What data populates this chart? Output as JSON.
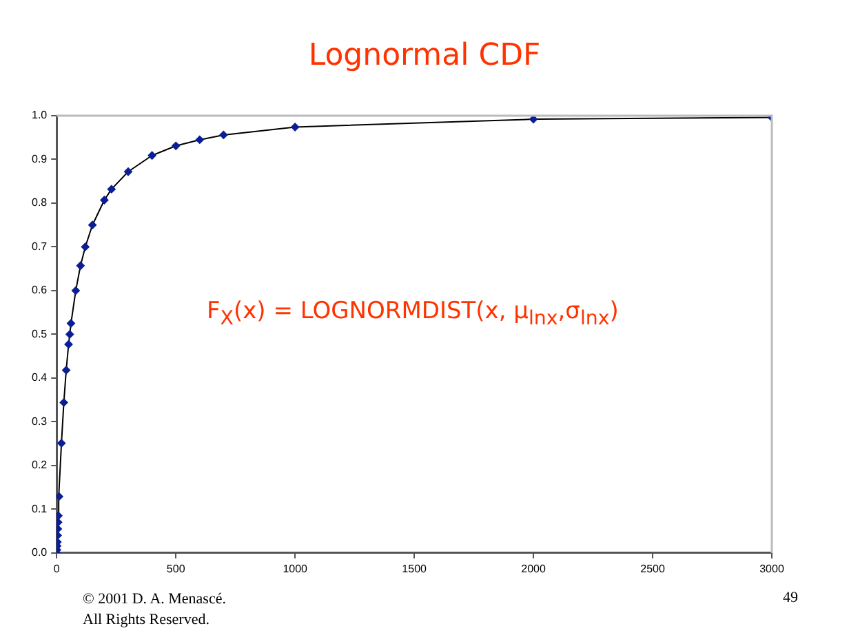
{
  "chart_data": {
    "type": "line",
    "title": "Lognormal CDF",
    "x": [
      0,
      1,
      2,
      3,
      4,
      5,
      6,
      7,
      10,
      20,
      30,
      40,
      50,
      55,
      60,
      80,
      100,
      120,
      150,
      200,
      230,
      300,
      400,
      500,
      600,
      700,
      1000,
      2000,
      3000
    ],
    "series": [
      {
        "color": "#0a1e96",
        "values": [
          0,
          0.007,
          0.016,
          0.025,
          0.04,
          0.055,
          0.07,
          0.085,
          0.129,
          0.251,
          0.344,
          0.418,
          0.477,
          0.5,
          0.525,
          0.6,
          0.657,
          0.7,
          0.75,
          0.807,
          0.832,
          0.872,
          0.909,
          0.931,
          0.945,
          0.956,
          0.974,
          0.992,
          0.996
        ]
      }
    ],
    "xlim": [
      0,
      3000
    ],
    "xticks": [
      0,
      500,
      1000,
      1500,
      2000,
      2500,
      3000
    ],
    "ylim": [
      0,
      1
    ],
    "yticks": [
      {
        "value": 0,
        "label": "0.0"
      },
      {
        "value": 0.1,
        "label": "0.1"
      },
      {
        "value": 0.2,
        "label": "0.2"
      },
      {
        "value": 0.3,
        "label": "0.3"
      },
      {
        "value": 0.4,
        "label": "0.4"
      },
      {
        "value": 0.5,
        "label": "0.5"
      },
      {
        "value": 0.6,
        "label": "0.6"
      },
      {
        "value": 0.7,
        "label": "0.7"
      },
      {
        "value": 0.8,
        "label": "0.8"
      },
      {
        "value": 0.9,
        "label": "0.9"
      },
      {
        "value": 1,
        "label": "1.0"
      }
    ],
    "grid": false,
    "legend": false,
    "marker": "diamond",
    "line_style": "solid",
    "annotations": [
      "F$_{X}$(x) = LOGNORMDIST(x, μ$_{lnx}$,σ$_{lnx}$)",
      "© 2001 D. A. Menascé.",
      "All Rights Reserved.",
      "49"
    ]
  }
}
